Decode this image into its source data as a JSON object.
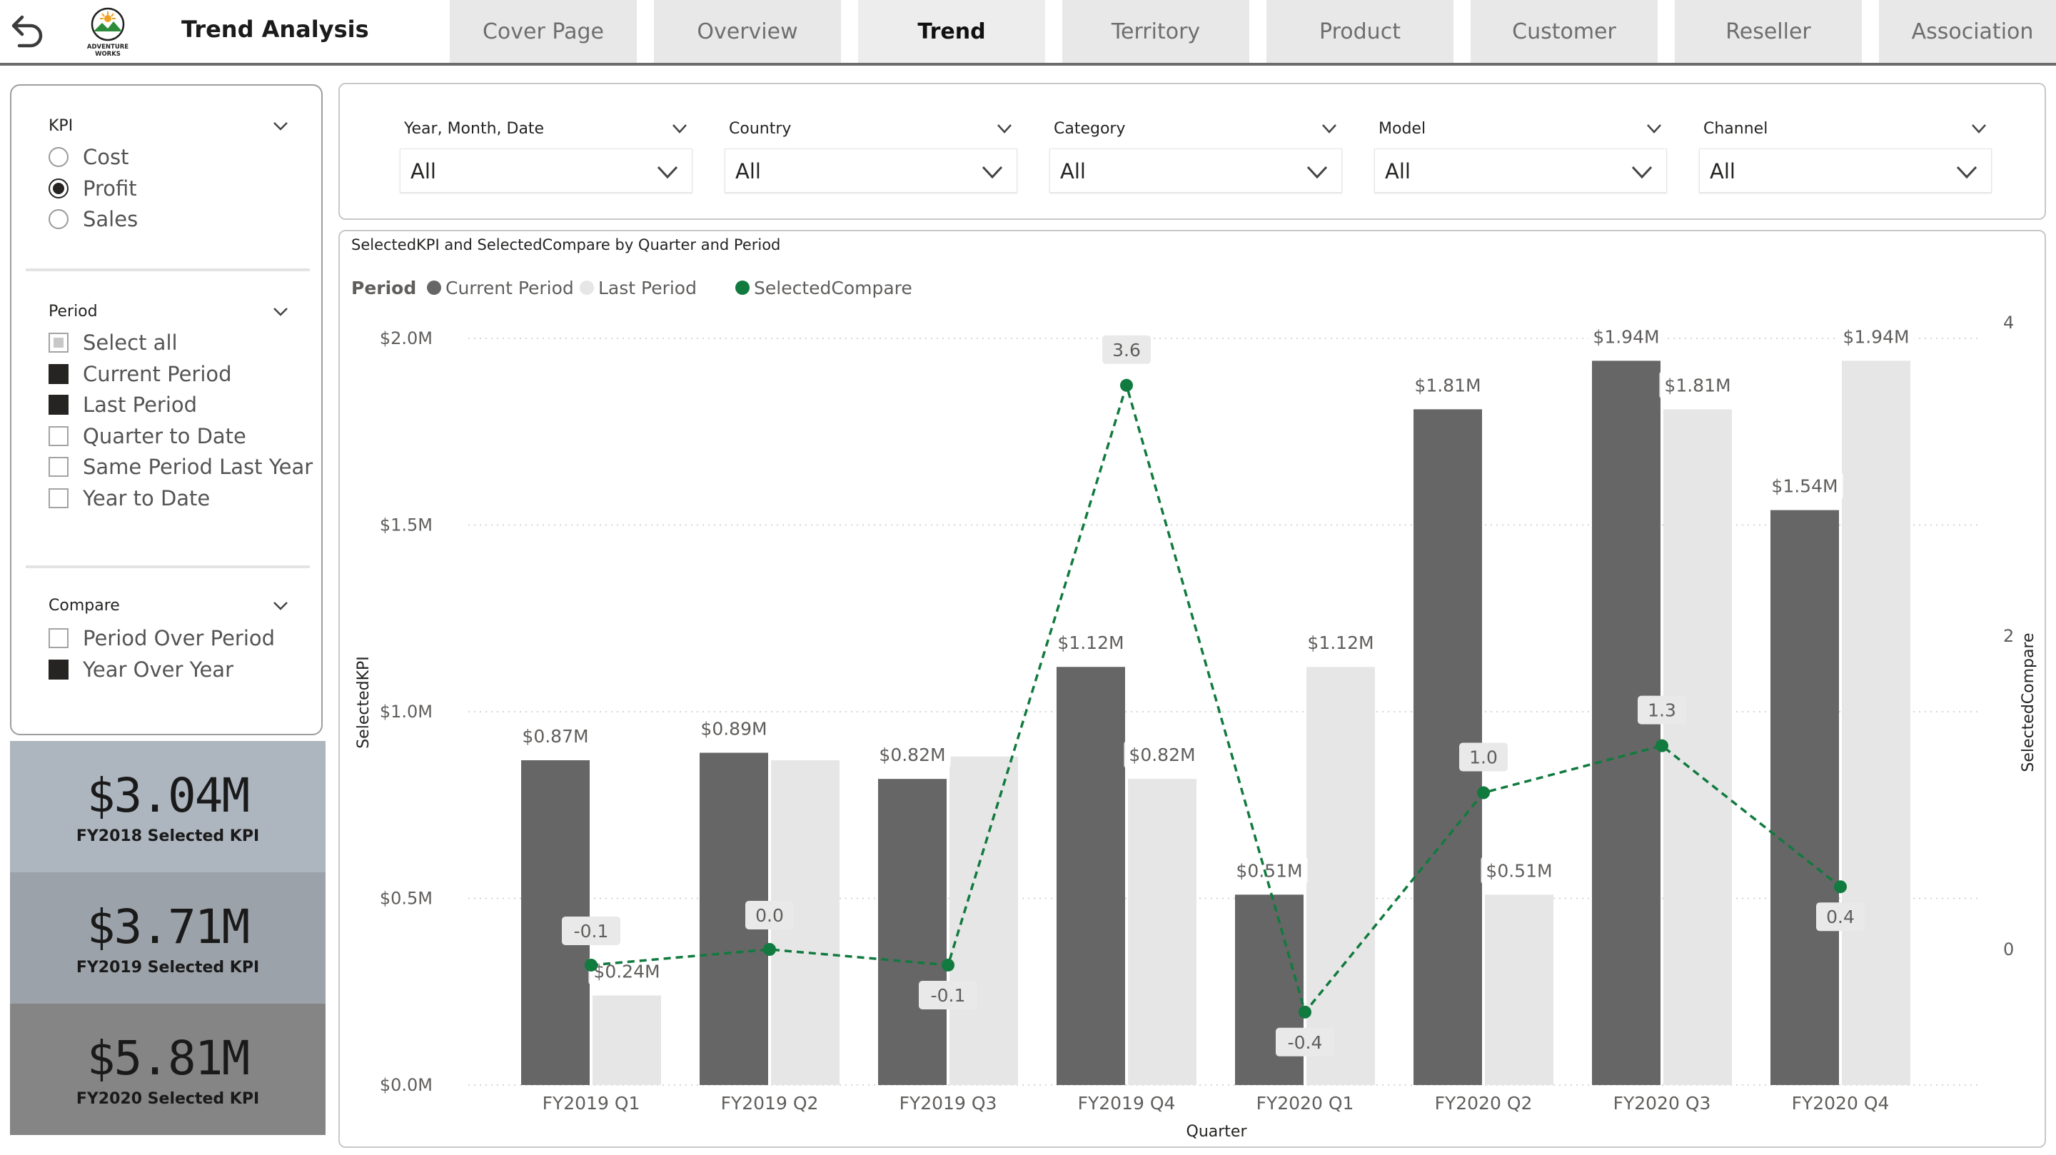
{
  "header": {
    "title": "Trend Analysis",
    "logo_text": [
      "ADVENTURE",
      "WORKS"
    ],
    "tabs": [
      {
        "label": "Cover Page",
        "active": false
      },
      {
        "label": "Overview",
        "active": false
      },
      {
        "label": "Trend",
        "active": true
      },
      {
        "label": "Territory",
        "active": false
      },
      {
        "label": "Product",
        "active": false
      },
      {
        "label": "Customer",
        "active": false
      },
      {
        "label": "Reseller",
        "active": false
      },
      {
        "label": "Association",
        "active": false
      }
    ]
  },
  "slicers": {
    "kpi": {
      "title": "KPI",
      "options": [
        {
          "label": "Cost",
          "selected": false
        },
        {
          "label": "Profit",
          "selected": true
        },
        {
          "label": "Sales",
          "selected": false
        }
      ]
    },
    "period": {
      "title": "Period",
      "options": [
        {
          "label": "Select all",
          "state": "partial"
        },
        {
          "label": "Current Period",
          "state": "on"
        },
        {
          "label": "Last Period",
          "state": "on"
        },
        {
          "label": "Quarter to Date",
          "state": "off"
        },
        {
          "label": "Same Period Last Year",
          "state": "off"
        },
        {
          "label": "Year to Date",
          "state": "off"
        }
      ]
    },
    "compare": {
      "title": "Compare",
      "options": [
        {
          "label": "Period Over Period",
          "state": "off"
        },
        {
          "label": "Year Over Year",
          "state": "on"
        }
      ]
    }
  },
  "kpi_cards": [
    {
      "value": "$3.04M",
      "label": "FY2018 Selected KPI",
      "color": "#adb5bf"
    },
    {
      "value": "$3.71M",
      "label": "FY2019 Selected KPI",
      "color": "#9ca2a9"
    },
    {
      "value": "$5.81M",
      "label": "FY2020 Selected KPI",
      "color": "#858585"
    }
  ],
  "filters": [
    {
      "title": "Year, Month, Date",
      "value": "All"
    },
    {
      "title": "Country",
      "value": "All"
    },
    {
      "title": "Category",
      "value": "All"
    },
    {
      "title": "Model",
      "value": "All"
    },
    {
      "title": "Channel",
      "value": "All"
    }
  ],
  "colors": {
    "current_period": "#666666",
    "last_period": "#e6e6e6",
    "selected_compare": "#117a3e",
    "gridline": "#c9c9c9"
  },
  "chart_data": {
    "type": "bar",
    "title": "SelectedKPI and SelectedCompare by Quarter and Period",
    "legend_title": "Period",
    "legend_position": "top-left",
    "xlabel": "Quarter",
    "ylabel": "SelectedKPI",
    "y2label": "SelectedCompare",
    "ylim": [
      0,
      2.0
    ],
    "y2lim": [
      -0.8,
      4.1
    ],
    "yticks": [
      "$0.0M",
      "$0.5M",
      "$1.0M",
      "$1.5M",
      "$2.0M"
    ],
    "y2ticks": [
      "0",
      "2",
      "4"
    ],
    "grid": true,
    "categories": [
      "FY2019 Q1",
      "FY2019 Q2",
      "FY2019 Q3",
      "FY2019 Q4",
      "FY2020 Q1",
      "FY2020 Q2",
      "FY2020 Q3",
      "FY2020 Q4"
    ],
    "series": [
      {
        "name": "Current Period",
        "kind": "bar",
        "values": [
          0.87,
          0.89,
          0.82,
          1.12,
          0.51,
          1.81,
          1.94,
          1.54
        ],
        "labels": [
          "$0.87M",
          "$0.89M",
          "$0.82M",
          "$1.12M",
          "$0.51M",
          "$1.81M",
          "$1.94M",
          "$1.54M"
        ]
      },
      {
        "name": "Last Period",
        "kind": "bar",
        "values": [
          0.24,
          0.87,
          0.88,
          0.82,
          1.12,
          0.51,
          1.81,
          1.94
        ],
        "labels": [
          "$0.24M",
          "",
          "",
          "$0.82M",
          "$1.12M",
          "$0.51M",
          "$1.81M",
          "$1.94M"
        ]
      },
      {
        "name": "SelectedCompare",
        "kind": "line",
        "axis": "secondary",
        "values": [
          -0.1,
          0.0,
          -0.1,
          3.6,
          -0.4,
          1.0,
          1.3,
          0.4
        ],
        "labels": [
          "-0.1",
          "0.0",
          "-0.1",
          "3.6",
          "-0.4",
          "1.0",
          "1.3",
          "0.4"
        ]
      }
    ]
  }
}
